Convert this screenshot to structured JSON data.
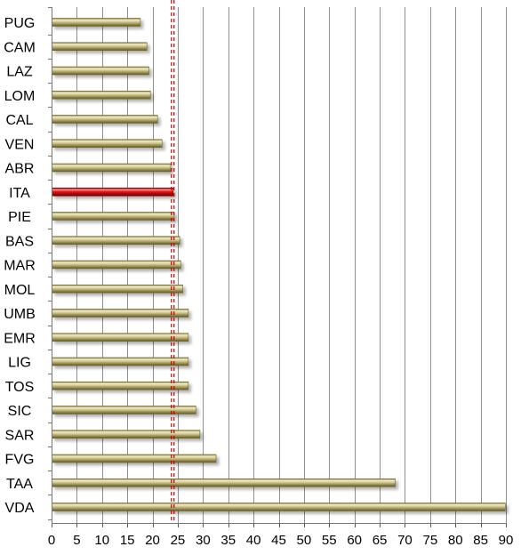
{
  "chart_data": {
    "type": "bar",
    "orientation": "horizontal",
    "title": "",
    "xlabel": "",
    "ylabel": "",
    "xlim": [
      0,
      90
    ],
    "xticks": [
      0,
      5,
      10,
      15,
      20,
      25,
      30,
      35,
      40,
      45,
      50,
      55,
      60,
      65,
      70,
      75,
      80,
      85,
      90
    ],
    "grid": "vertical",
    "categories": [
      "PUG",
      "CAM",
      "LAZ",
      "LOM",
      "CAL",
      "VEN",
      "ABR",
      "ITA",
      "PIE",
      "BAS",
      "MAR",
      "MOL",
      "UMB",
      "EMR",
      "LIG",
      "TOS",
      "SIC",
      "SAR",
      "FVG",
      "TAA",
      "VDA"
    ],
    "values": [
      17.5,
      18.8,
      19.2,
      19.5,
      20.9,
      21.8,
      23.5,
      24.0,
      24.2,
      25.3,
      25.5,
      25.9,
      27.0,
      27.0,
      27.0,
      27.0,
      28.5,
      29.3,
      32.5,
      68.0,
      89.8
    ],
    "highlight_category": "ITA",
    "reference_line": {
      "value": 24.0,
      "style": "dashed"
    },
    "colors": {
      "bar": "#bdb277",
      "bar_dark": "#6f6628",
      "bar_light": "#f5efc8",
      "highlight": "#e01010",
      "highlight_dark": "#7a0000",
      "highlight_light": "#ff8a8a",
      "grid": "#909090",
      "reference_line": "#c00000"
    }
  }
}
